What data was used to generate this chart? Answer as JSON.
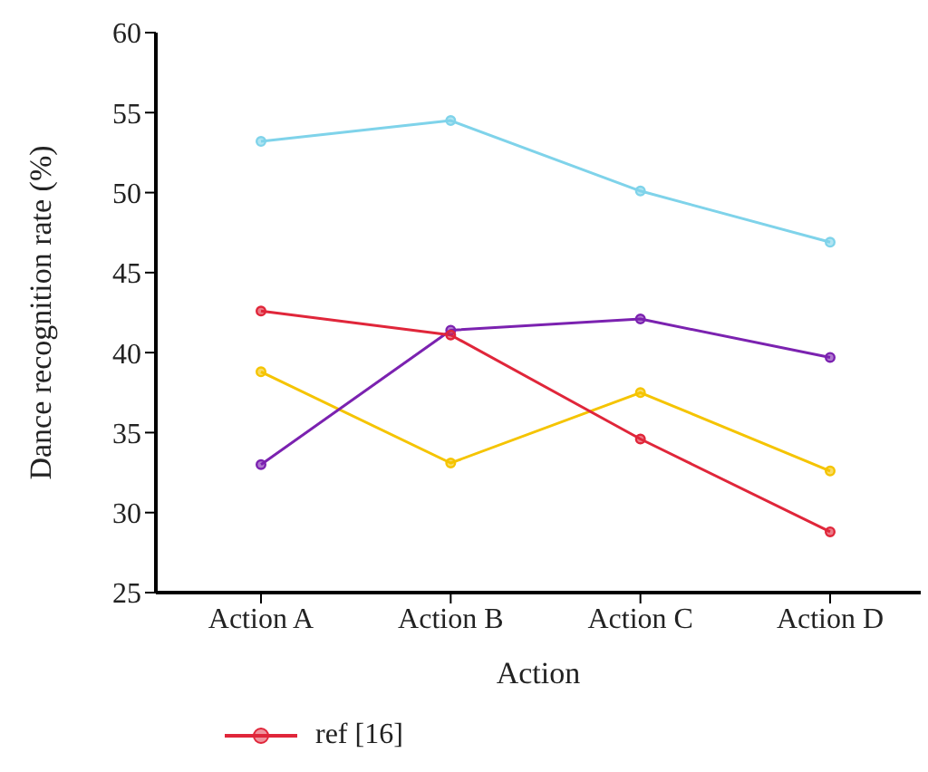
{
  "chart_data": {
    "type": "line",
    "xlabel": "Action",
    "ylabel": "Dance recognition rate (%)",
    "categories": [
      "Action A",
      "Action B",
      "Action C",
      "Action D"
    ],
    "series": [
      {
        "color": "#7fd3ea",
        "values": [
          53.2,
          54.5,
          50.1,
          46.9
        ]
      },
      {
        "name": "ref [16]",
        "color": "#e0263a",
        "values": [
          42.6,
          41.1,
          34.6,
          28.8
        ]
      },
      {
        "color": "#7b22b0",
        "values": [
          33.0,
          41.4,
          42.1,
          39.7
        ]
      },
      {
        "color": "#f5c400",
        "values": [
          38.8,
          33.1,
          37.5,
          32.6
        ]
      }
    ],
    "ylim": [
      25,
      60
    ],
    "yticks": [
      25,
      30,
      35,
      40,
      45,
      50,
      55,
      60
    ],
    "grid": false,
    "legend": "bottom",
    "marker": "circle",
    "line_style": "solid"
  }
}
